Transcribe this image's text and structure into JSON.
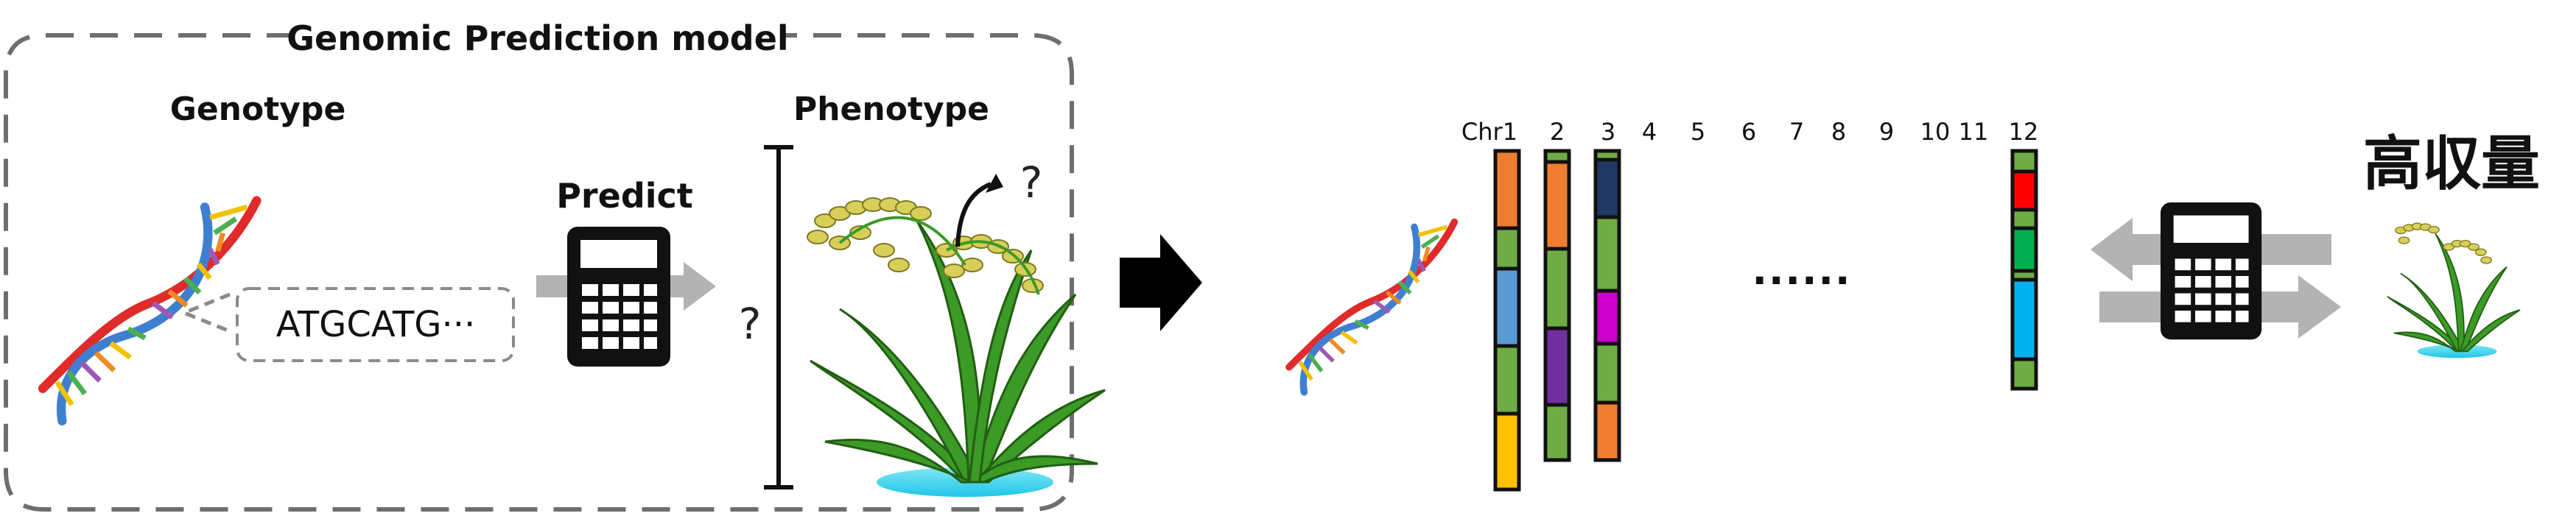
{
  "model_box": {
    "title": "Genomic Prediction model",
    "genotype_label": "Genotype",
    "phenotype_label": "Phenotype",
    "predict_label": "Predict",
    "sequence_text": "ATGCATG···",
    "unknown_mark": "?",
    "plant_unknown_mark": "?"
  },
  "chromosomes": {
    "labels": [
      "Chr1",
      "2",
      "3",
      "4",
      "5",
      "6",
      "7",
      "8",
      "9",
      "10",
      "11",
      "12"
    ],
    "ellipsis": "······"
  },
  "result": {
    "high_yield_label": "高収量"
  },
  "colors": {
    "dash_border": "#6e6e6e",
    "arrow_gray": "#b3b3b3",
    "orange": "#ee7d31",
    "green": "#6fac46",
    "blue": "#5b9bd5",
    "purple": "#7030a0",
    "gold": "#ffc000",
    "navy": "#1f3864",
    "magenta": "#cc00cc",
    "red": "#ff0000",
    "bright_green": "#00b050",
    "cyan": "#00b0f0"
  }
}
